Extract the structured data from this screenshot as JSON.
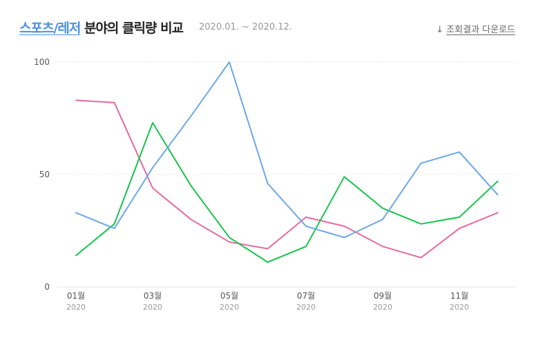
{
  "header": {
    "title_category": "스포츠/레저",
    "title_rest": " 분야의 클릭량 비교",
    "period": "2020.01. ~ 2020.12.",
    "download_label": "조회결과 다운로드",
    "download_icon": "download-icon"
  },
  "chart_data": {
    "type": "line",
    "x": [
      "2020-01",
      "2020-02",
      "2020-03",
      "2020-04",
      "2020-05",
      "2020-06",
      "2020-07",
      "2020-08",
      "2020-09",
      "2020-10",
      "2020-11",
      "2020-12"
    ],
    "x_tick_labels": [
      {
        "month": "01월",
        "year": "2020"
      },
      {
        "month": "03월",
        "year": "2020"
      },
      {
        "month": "05월",
        "year": "2020"
      },
      {
        "month": "07월",
        "year": "2020"
      },
      {
        "month": "09월",
        "year": "2020"
      },
      {
        "month": "11월",
        "year": "2020"
      }
    ],
    "y_ticks": [
      0,
      50,
      100
    ],
    "ylim": [
      0,
      100
    ],
    "grid": "horizontal dotted at 50 and 100",
    "series": [
      {
        "color": "#e8689c",
        "values": [
          83,
          82,
          44,
          30,
          20,
          17,
          31,
          27,
          18,
          13,
          26,
          33
        ]
      },
      {
        "color": "#15c44a",
        "values": [
          14,
          28,
          73,
          45,
          22,
          11,
          18,
          49,
          35,
          28,
          31,
          47
        ]
      },
      {
        "color": "#6aa8e8",
        "values": [
          33,
          26,
          53,
          76,
          100,
          46,
          27,
          22,
          30,
          55,
          60,
          41
        ]
      }
    ]
  }
}
